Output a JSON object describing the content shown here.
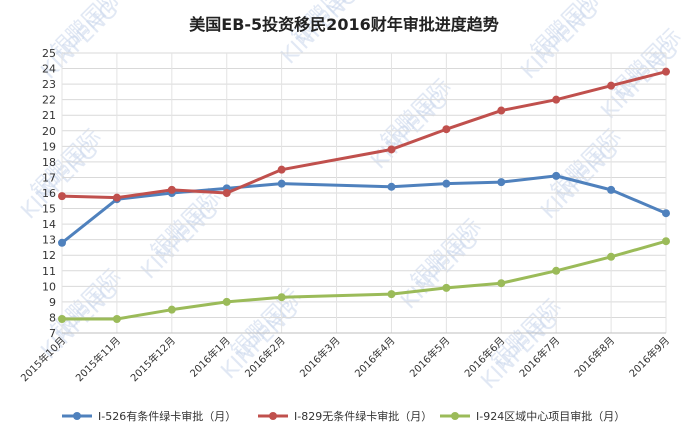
{
  "chart_data": {
    "type": "line",
    "title": "美国EB-5投资移民2016财年审批进度趋势",
    "categories": [
      "2015年10月",
      "2015年11月",
      "2015年12月",
      "2016年1月",
      "2016年2月",
      "2016年3月",
      "2016年4月",
      "2016年5月",
      "2016年6月",
      "2016年7月",
      "2016年8月",
      "2016年9月"
    ],
    "ylim": [
      7,
      25
    ],
    "yticks": [
      7,
      8,
      9,
      10,
      11,
      12,
      13,
      14,
      15,
      16,
      17,
      18,
      19,
      20,
      21,
      22,
      23,
      24,
      25
    ],
    "grid": true,
    "legend_position": "bottom",
    "series": [
      {
        "name": "I-526有条件绿卡审批（月）",
        "color": "#4f81bd",
        "x": [
          0,
          1,
          2,
          3,
          4,
          6,
          7,
          8,
          9,
          10,
          11
        ],
        "values": [
          12.8,
          15.6,
          16.0,
          16.3,
          16.6,
          16.4,
          16.6,
          16.7,
          17.1,
          16.2,
          14.7
        ]
      },
      {
        "name": "I-829无条件绿卡审批（月）",
        "color": "#c0504d",
        "x": [
          0,
          1,
          2,
          3,
          4,
          6,
          7,
          8,
          9,
          10,
          11
        ],
        "values": [
          15.8,
          15.7,
          16.2,
          16.0,
          17.5,
          18.8,
          20.1,
          21.3,
          22.0,
          22.9,
          23.8
        ]
      },
      {
        "name": "I-924区域中心项目审批（月）",
        "color": "#9bbb59",
        "x": [
          0,
          1,
          2,
          3,
          4,
          6,
          7,
          8,
          9,
          10,
          11
        ],
        "values": [
          7.9,
          7.9,
          8.5,
          9.0,
          9.3,
          9.5,
          9.9,
          10.2,
          11.0,
          11.9,
          12.9
        ]
      }
    ]
  },
  "watermark": {
    "text": "银鹏国际",
    "brand": "KINPENG"
  }
}
